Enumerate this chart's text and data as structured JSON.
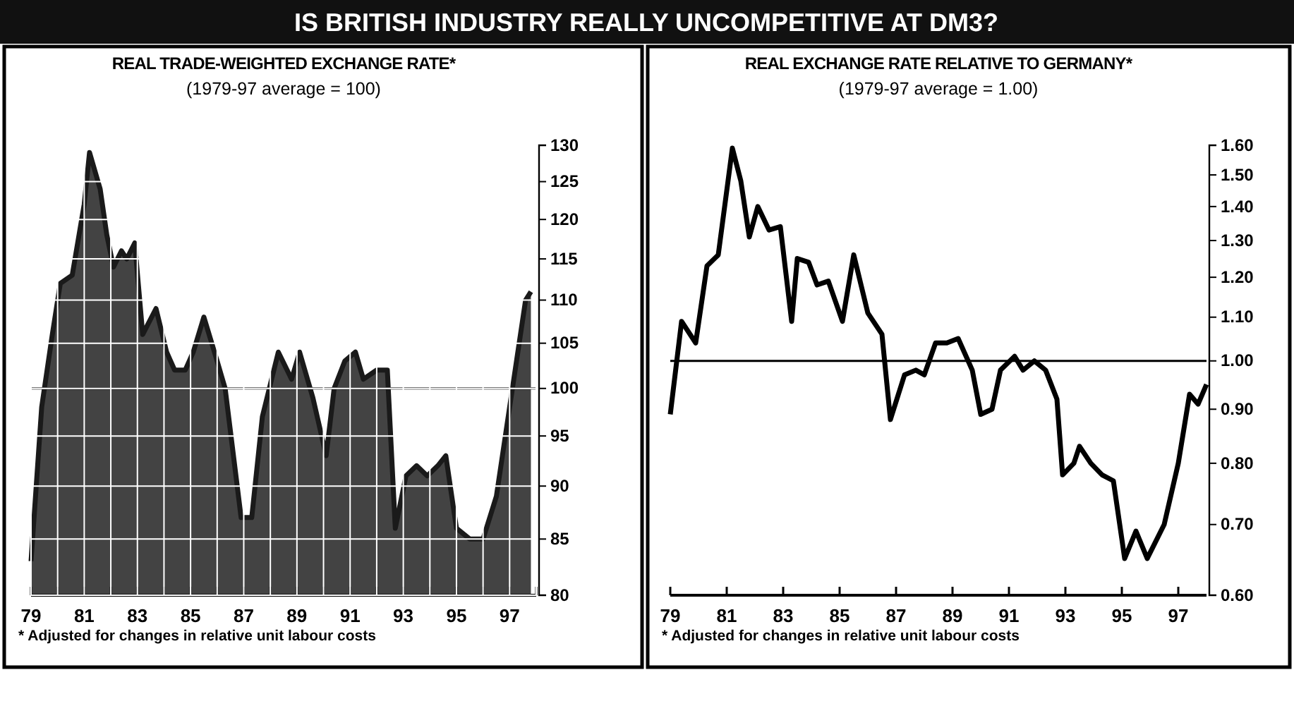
{
  "chart_data": [
    {
      "type": "area",
      "title": "IS BRITISH INDUSTRY REALLY UNCOMPETITIVE AT DM3?",
      "subtitle": "REAL TRADE-WEIGHTED EXCHANGE RATE*",
      "ylabel": "(1979-97 average = 100)",
      "log": "y",
      "grid": true,
      "x": [
        1979.0,
        1979.4,
        1979.8,
        1980.1,
        1980.55,
        1981.0,
        1981.2,
        1981.6,
        1981.85,
        1982.1,
        1982.4,
        1982.6,
        1982.9,
        1983.2,
        1983.7,
        1984.1,
        1984.4,
        1984.8,
        1985.1,
        1985.5,
        1986.0,
        1986.3,
        1986.9,
        1987.3,
        1987.7,
        1988.3,
        1988.8,
        1989.1,
        1989.6,
        1990.1,
        1990.4,
        1990.8,
        1991.2,
        1991.5,
        1992.0,
        1992.4,
        1992.7,
        1993.1,
        1993.5,
        1993.9,
        1994.3,
        1994.6,
        1995.0,
        1995.5,
        1996.0,
        1996.5,
        1997.0,
        1997.6,
        1997.8
      ],
      "series": [
        {
          "color": "#1a1a1a",
          "values": [
            83,
            98,
            106,
            112,
            113,
            122,
            129,
            124,
            118,
            114,
            116,
            115,
            117,
            106,
            109,
            104,
            102,
            102,
            104,
            108,
            103,
            100,
            87,
            87,
            97,
            104,
            101,
            104,
            99,
            93,
            100,
            103,
            104,
            101,
            102,
            102,
            86,
            91,
            92,
            91,
            92,
            93,
            86,
            85,
            85,
            89,
            98,
            110,
            111
          ]
        }
      ],
      "xlim": [
        1979,
        1998
      ],
      "xticks": [
        {
          "value": 1979,
          "label": "79"
        },
        {
          "value": 1980,
          "label": null
        },
        {
          "value": 1981,
          "label": "81"
        },
        {
          "value": 1982,
          "label": null
        },
        {
          "value": 1983,
          "label": "83"
        },
        {
          "value": 1984,
          "label": null
        },
        {
          "value": 1985,
          "label": "85"
        },
        {
          "value": 1986,
          "label": null
        },
        {
          "value": 1987,
          "label": "87"
        },
        {
          "value": 1988,
          "label": null
        },
        {
          "value": 1989,
          "label": "89"
        },
        {
          "value": 1990,
          "label": null
        },
        {
          "value": 1991,
          "label": "91"
        },
        {
          "value": 1992,
          "label": null
        },
        {
          "value": 1993,
          "label": "93"
        },
        {
          "value": 1994,
          "label": null
        },
        {
          "value": 1995,
          "label": "95"
        },
        {
          "value": 1996,
          "label": null
        },
        {
          "value": 1997,
          "label": "97"
        },
        {
          "value": 1998,
          "label": null
        }
      ],
      "ylim": [
        80,
        130
      ],
      "yticks": [
        80,
        85,
        90,
        95,
        100,
        105,
        110,
        115,
        120,
        125,
        130
      ],
      "ref_lines": [
        {
          "axis": "y",
          "value": 100,
          "color": "#000000"
        }
      ],
      "annotations": [
        "* Adjusted for changes in relative unit labour costs"
      ]
    },
    {
      "type": "line",
      "title": "REAL EXCHANGE RATE RELATIVE TO GERMANY*",
      "ylabel": "(1979-97 average = 1.00)",
      "log": "y",
      "x": [
        1979.0,
        1979.4,
        1979.9,
        1980.3,
        1980.7,
        1981.2,
        1981.5,
        1981.8,
        1982.1,
        1982.5,
        1982.9,
        1983.3,
        1983.5,
        1983.9,
        1984.2,
        1984.6,
        1985.1,
        1985.5,
        1986.0,
        1986.5,
        1986.8,
        1987.3,
        1987.7,
        1988.0,
        1988.4,
        1988.8,
        1989.2,
        1989.7,
        1990.0,
        1990.4,
        1990.7,
        1991.2,
        1991.5,
        1991.9,
        1992.3,
        1992.7,
        1992.9,
        1993.3,
        1993.5,
        1993.9,
        1994.3,
        1994.7,
        1995.1,
        1995.5,
        1995.9,
        1996.5,
        1997.0,
        1997.4,
        1997.7,
        1998.0
      ],
      "series": [
        {
          "color": "#000000",
          "values": [
            0.89,
            1.09,
            1.04,
            1.23,
            1.26,
            1.59,
            1.48,
            1.31,
            1.4,
            1.33,
            1.34,
            1.09,
            1.25,
            1.24,
            1.18,
            1.19,
            1.09,
            1.26,
            1.11,
            1.06,
            0.88,
            0.97,
            0.98,
            0.97,
            1.04,
            1.04,
            1.05,
            0.98,
            0.89,
            0.9,
            0.98,
            1.01,
            0.98,
            1.0,
            0.98,
            0.92,
            0.78,
            0.8,
            0.83,
            0.8,
            0.78,
            0.77,
            0.65,
            0.69,
            0.65,
            0.7,
            0.8,
            0.93,
            0.91,
            0.95
          ]
        }
      ],
      "xlim": [
        1979,
        1998
      ],
      "xticks": [
        {
          "value": 1979,
          "label": "79"
        },
        {
          "value": 1981,
          "label": "81"
        },
        {
          "value": 1983,
          "label": "83"
        },
        {
          "value": 1985,
          "label": "85"
        },
        {
          "value": 1987,
          "label": "87"
        },
        {
          "value": 1989,
          "label": "89"
        },
        {
          "value": 1991,
          "label": "91"
        },
        {
          "value": 1993,
          "label": "93"
        },
        {
          "value": 1995,
          "label": "95"
        },
        {
          "value": 1997,
          "label": "97"
        }
      ],
      "ylim": [
        0.6,
        1.6
      ],
      "yticks": [
        {
          "value": 0.6,
          "label": "0.60"
        },
        {
          "value": 0.7,
          "label": "0.70"
        },
        {
          "value": 0.8,
          "label": "0.80"
        },
        {
          "value": 0.9,
          "label": "0.90"
        },
        {
          "value": 1.0,
          "label": "1.00"
        },
        {
          "value": 1.1,
          "label": "1.10"
        },
        {
          "value": 1.2,
          "label": "1.20"
        },
        {
          "value": 1.3,
          "label": "1.30"
        },
        {
          "value": 1.4,
          "label": "1.40"
        },
        {
          "value": 1.5,
          "label": "1.50"
        },
        {
          "value": 1.6,
          "label": "1.60"
        }
      ],
      "ref_lines": [
        {
          "axis": "y",
          "value": 1.0,
          "color": "#000000"
        }
      ],
      "annotations": [
        "* Adjusted for changes in relative unit labour costs"
      ]
    }
  ]
}
